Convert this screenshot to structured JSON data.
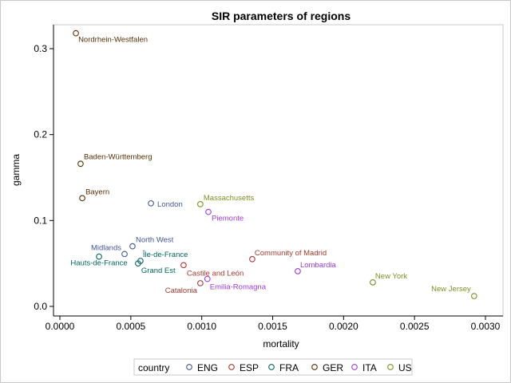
{
  "chart_data": {
    "type": "scatter",
    "title": "SIR parameters of regions",
    "xlabel": "mortality",
    "ylabel": "gamma",
    "xlim": [
      -0.00012,
      0.00305
    ],
    "ylim": [
      -0.012,
      0.328
    ],
    "xticks": [
      0.0,
      0.0005,
      0.001,
      0.0015,
      0.002,
      0.0025,
      0.003
    ],
    "xtick_labels": [
      "0.0000",
      "0.0005",
      "0.0010",
      "0.0015",
      "0.0020",
      "0.0025",
      "0.0030"
    ],
    "yticks": [
      0.0,
      0.1,
      0.2,
      0.3
    ],
    "ytick_labels": [
      "0.0",
      "0.1",
      "0.2",
      "0.3"
    ],
    "grid": false,
    "legend": {
      "title": "country",
      "placement": "bottom",
      "entries": [
        {
          "name": "ENG",
          "color": "#445694"
        },
        {
          "name": "ESP",
          "color": "#A23A2E"
        },
        {
          "name": "FRA",
          "color": "#01665E"
        },
        {
          "name": "GER",
          "color": "#543005"
        },
        {
          "name": "ITA",
          "color": "#9D3CDB"
        },
        {
          "name": "US",
          "color": "#7F8E1F"
        }
      ]
    },
    "points": [
      {
        "label": "Nordrhein-Westfalen",
        "country": "GER",
        "x": 0.000113,
        "y": 0.318
      },
      {
        "label": "Baden-Württemberg",
        "country": "GER",
        "x": 0.000146,
        "y": 0.166
      },
      {
        "label": "Bayern",
        "country": "GER",
        "x": 0.000158,
        "y": 0.126
      },
      {
        "label": "London",
        "country": "ENG",
        "x": 0.000642,
        "y": 0.12
      },
      {
        "label": "Massachusetts",
        "country": "US",
        "x": 0.00099,
        "y": 0.119
      },
      {
        "label": "Piemonte",
        "country": "ITA",
        "x": 0.001047,
        "y": 0.11
      },
      {
        "label": "North West",
        "country": "ENG",
        "x": 0.000512,
        "y": 0.07
      },
      {
        "label": "Midlands",
        "country": "ENG",
        "x": 0.000456,
        "y": 0.061
      },
      {
        "label": "Hauts-de-France",
        "country": "FRA",
        "x": 0.000276,
        "y": 0.058
      },
      {
        "label": "Île-de-France",
        "country": "FRA",
        "x": 0.000568,
        "y": 0.053
      },
      {
        "label": "Grand Est",
        "country": "FRA",
        "x": 0.000551,
        "y": 0.05
      },
      {
        "label": "Community of Madrid",
        "country": "ESP",
        "x": 0.001356,
        "y": 0.055
      },
      {
        "label": "Castile and León",
        "country": "ESP",
        "x": 0.000872,
        "y": 0.048
      },
      {
        "label": "Catalonia",
        "country": "ESP",
        "x": 0.00099,
        "y": 0.027
      },
      {
        "label": "Emilia-Romagna",
        "country": "ITA",
        "x": 0.00104,
        "y": 0.032
      },
      {
        "label": "Lombardia",
        "country": "ITA",
        "x": 0.001677,
        "y": 0.041
      },
      {
        "label": "New York",
        "country": "US",
        "x": 0.002206,
        "y": 0.028
      },
      {
        "label": "New Jersey",
        "country": "US",
        "x": 0.00292,
        "y": 0.012
      }
    ]
  }
}
